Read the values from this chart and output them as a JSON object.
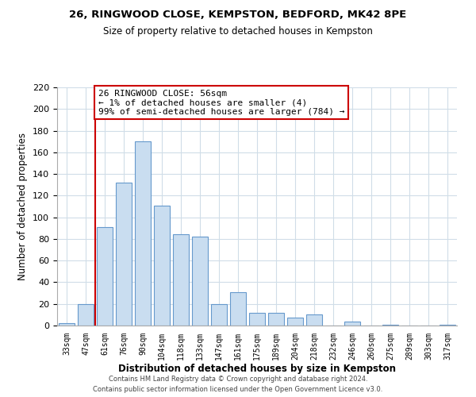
{
  "title1": "26, RINGWOOD CLOSE, KEMPSTON, BEDFORD, MK42 8PE",
  "title2": "Size of property relative to detached houses in Kempston",
  "xlabel": "Distribution of detached houses by size in Kempston",
  "ylabel": "Number of detached properties",
  "bin_labels": [
    "33sqm",
    "47sqm",
    "61sqm",
    "76sqm",
    "90sqm",
    "104sqm",
    "118sqm",
    "133sqm",
    "147sqm",
    "161sqm",
    "175sqm",
    "189sqm",
    "204sqm",
    "218sqm",
    "232sqm",
    "246sqm",
    "260sqm",
    "275sqm",
    "289sqm",
    "303sqm",
    "317sqm"
  ],
  "bar_heights": [
    2,
    20,
    91,
    132,
    170,
    111,
    84,
    82,
    20,
    31,
    12,
    12,
    7,
    10,
    0,
    4,
    0,
    1,
    0,
    0,
    1
  ],
  "bar_color": "#c9ddf0",
  "bar_edge_color": "#6699cc",
  "vline_x_index": 2,
  "vline_color": "#cc0000",
  "ylim": [
    0,
    220
  ],
  "yticks": [
    0,
    20,
    40,
    60,
    80,
    100,
    120,
    140,
    160,
    180,
    200,
    220
  ],
  "annotation_title": "26 RINGWOOD CLOSE: 56sqm",
  "annotation_line1": "← 1% of detached houses are smaller (4)",
  "annotation_line2": "99% of semi-detached houses are larger (784) →",
  "footer1": "Contains HM Land Registry data © Crown copyright and database right 2024.",
  "footer2": "Contains public sector information licensed under the Open Government Licence v3.0.",
  "background_color": "#ffffff",
  "grid_color": "#d0dde8"
}
